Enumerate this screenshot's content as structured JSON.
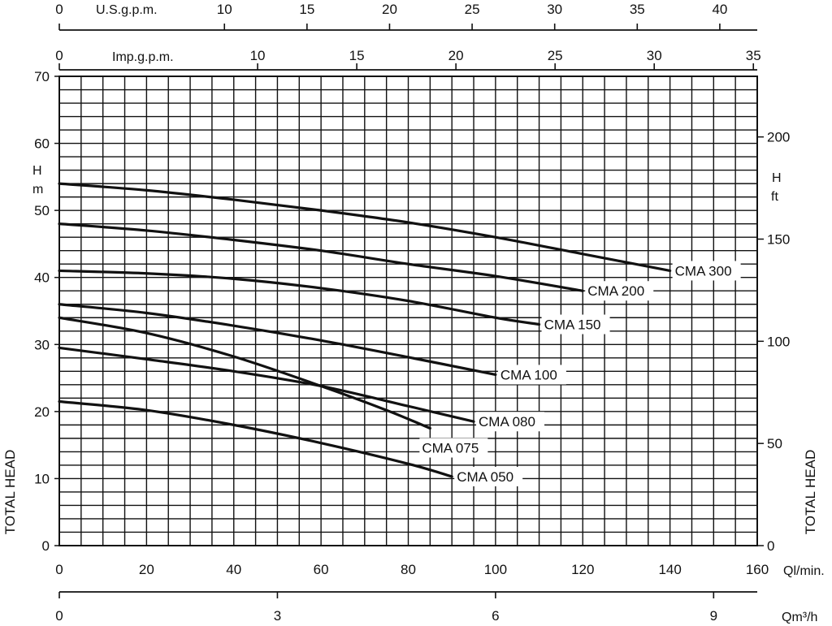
{
  "chart_data": {
    "type": "line",
    "title": "",
    "xlabel": "Ql/min.",
    "ylabel": "TOTAL HEAD",
    "xlim": [
      0,
      160
    ],
    "ylim": [
      0,
      70
    ],
    "grid": true,
    "y_unit": [
      "H",
      "m"
    ],
    "y2_unit": [
      "H",
      "ft"
    ],
    "x_ticks": [
      "0",
      "20",
      "40",
      "60",
      "80",
      "100",
      "120",
      "140",
      "160"
    ],
    "y_ticks": [
      "0",
      "10",
      "20",
      "30",
      "40",
      "50",
      "60",
      "70"
    ],
    "usgpm_axis": {
      "label": "U.S.g.p.m.",
      "ticks": [
        "0",
        "10",
        "15",
        "20",
        "25",
        "30",
        "35",
        "40"
      ]
    },
    "impgpm_axis": {
      "label": "Imp.g.p.m.",
      "ticks": [
        "0",
        "10",
        "15",
        "20",
        "25",
        "30",
        "35"
      ]
    },
    "qm3h_axis": {
      "label": "Qm³/h",
      "ticks": [
        "0",
        "3",
        "6",
        "9"
      ]
    },
    "ft_axis": {
      "ticks": [
        "0",
        "50",
        "100",
        "150",
        "200"
      ]
    },
    "series": [
      {
        "name": "CMA 300",
        "x": [
          0,
          20,
          40,
          60,
          80,
          100,
          120,
          140
        ],
        "y": [
          54,
          53,
          51.6,
          50,
          48.2,
          46,
          43.5,
          41
        ]
      },
      {
        "name": "CMA 200",
        "x": [
          0,
          20,
          40,
          60,
          80,
          100,
          120
        ],
        "y": [
          48,
          47,
          45.6,
          44,
          42,
          40.2,
          38
        ]
      },
      {
        "name": "CMA 150",
        "x": [
          0,
          20,
          40,
          60,
          80,
          100,
          110
        ],
        "y": [
          41,
          40.6,
          39.8,
          38.4,
          36.5,
          34,
          33
        ]
      },
      {
        "name": "CMA 100",
        "x": [
          0,
          20,
          40,
          60,
          80,
          100
        ],
        "y": [
          36,
          34.7,
          32.8,
          30.6,
          28.1,
          25.5
        ]
      },
      {
        "name": "CMA 080",
        "x": [
          0,
          20,
          40,
          60,
          80,
          95
        ],
        "y": [
          29.5,
          27.8,
          26,
          23.8,
          20.8,
          18.5
        ]
      },
      {
        "name": "CMA 075",
        "x": [
          0,
          20,
          40,
          60,
          75,
          85
        ],
        "y": [
          34,
          31.7,
          28.2,
          23.8,
          20.2,
          17.5
        ]
      },
      {
        "name": "CMA 050",
        "x": [
          0,
          20,
          40,
          60,
          80,
          90
        ],
        "y": [
          21.5,
          20.2,
          18,
          15.3,
          12.2,
          10.3
        ]
      }
    ]
  }
}
